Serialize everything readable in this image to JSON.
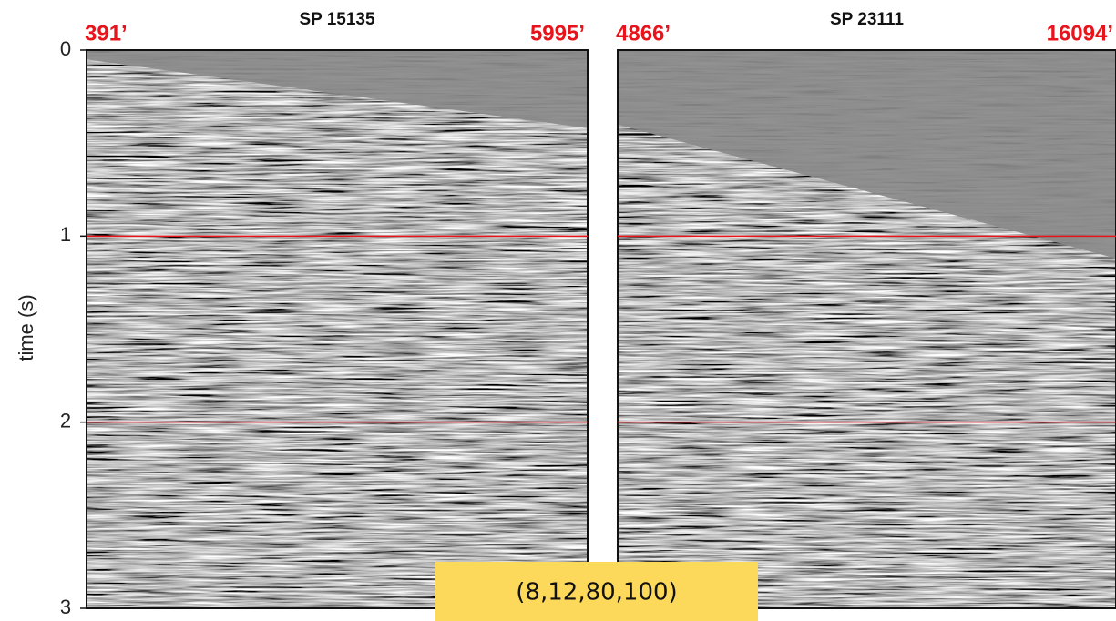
{
  "y_axis": {
    "label": "time (s)",
    "range": [
      0,
      3
    ],
    "ticks": [
      0,
      1,
      2,
      3
    ]
  },
  "reference_lines": [
    1,
    2
  ],
  "panels": [
    {
      "title": "SP 15135",
      "left_offset": "391’",
      "right_offset": "5995’"
    },
    {
      "title": "SP 23111",
      "left_offset": "4866’",
      "right_offset": "16094’"
    }
  ],
  "annotation": "(8,12,80,100)"
}
